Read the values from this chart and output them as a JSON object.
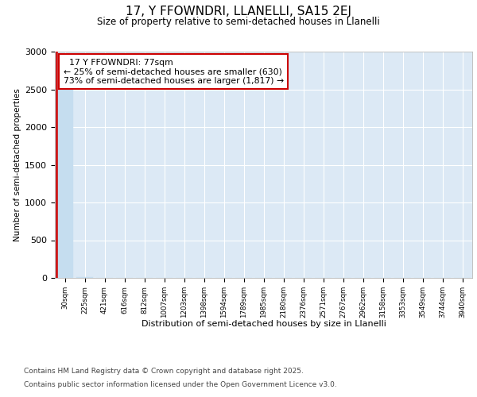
{
  "title": "17, Y FFOWNDRI, LLANELLI, SA15 2EJ",
  "subtitle": "Size of property relative to semi-detached houses in Llanelli",
  "xlabel": "Distribution of semi-detached houses by size in Llanelli",
  "ylabel": "Number of semi-detached properties",
  "property_label": "17 Y FFOWNDRI: 77sqm",
  "pct_smaller": 25,
  "count_smaller": 630,
  "pct_larger": 73,
  "count_larger": 1817,
  "bar_color": "#c5ddef",
  "highlight_color": "#cc0000",
  "annotation_box_color": "#cc0000",
  "background_color": "#ffffff",
  "plot_bg_color": "#dce9f5",
  "categories": [
    "30sqm",
    "225sqm",
    "421sqm",
    "616sqm",
    "812sqm",
    "1007sqm",
    "1203sqm",
    "1398sqm",
    "1594sqm",
    "1789sqm",
    "1985sqm",
    "2180sqm",
    "2376sqm",
    "2571sqm",
    "2767sqm",
    "2962sqm",
    "3158sqm",
    "3353sqm",
    "3549sqm",
    "3744sqm",
    "3940sqm"
  ],
  "values": [
    2490,
    10,
    5,
    3,
    2,
    2,
    2,
    1,
    1,
    1,
    1,
    1,
    1,
    1,
    1,
    1,
    1,
    1,
    1,
    1,
    1
  ],
  "ylim": [
    0,
    3000
  ],
  "yticks": [
    0,
    500,
    1000,
    1500,
    2000,
    2500,
    3000
  ],
  "footnote1": "Contains HM Land Registry data © Crown copyright and database right 2025.",
  "footnote2": "Contains public sector information licensed under the Open Government Licence v3.0."
}
